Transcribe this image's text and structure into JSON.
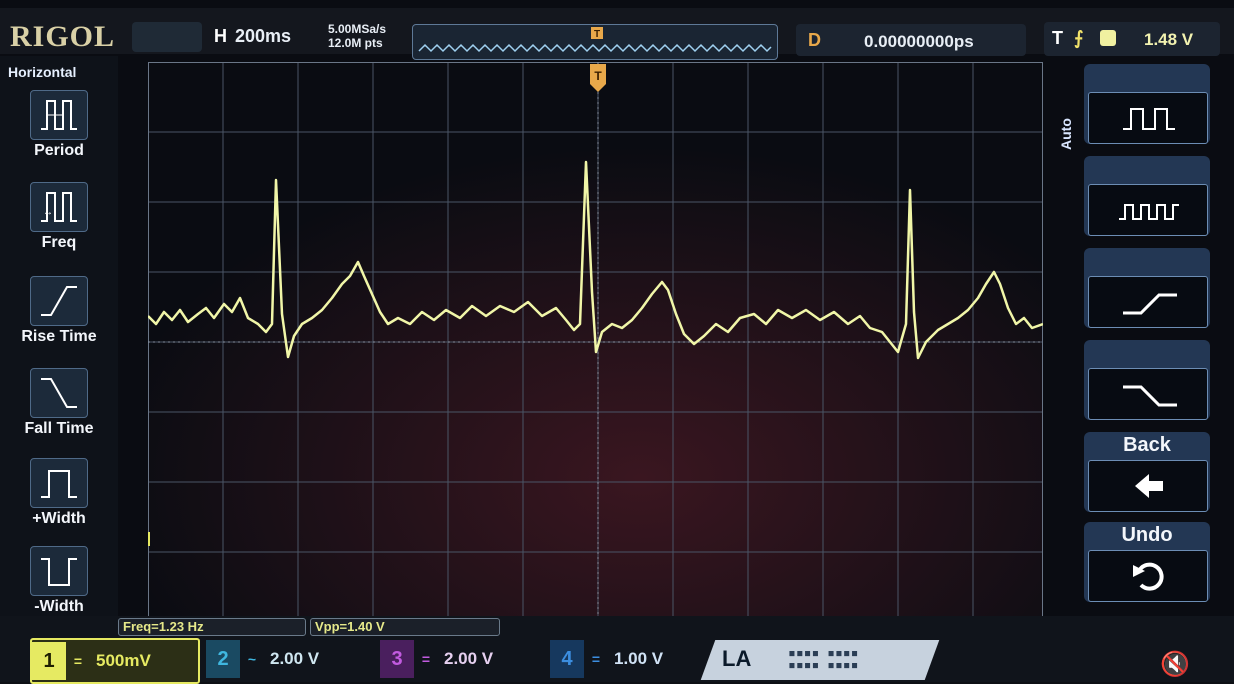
{
  "brand": {
    "logo": "RIGOL"
  },
  "top": {
    "timebase_icon": "H",
    "timebase": "200ms",
    "sample_rate": "5.00MSa/s",
    "memory_depth": "12.0M pts",
    "trigger_pos_marker": "T",
    "delay_label": "D",
    "delay_value": "0.00000000ps",
    "trigger_label": "T",
    "trigger_slope_icon": "rising-edge-icon",
    "trigger_level": "1.48 V"
  },
  "left_menu": {
    "title": "Horizontal",
    "items": [
      {
        "label": "Period",
        "icon": "period-icon"
      },
      {
        "label": "Freq",
        "icon": "freq-icon"
      },
      {
        "label": "Rise Time",
        "icon": "rise-time-icon"
      },
      {
        "label": "Fall Time",
        "icon": "fall-time-icon"
      },
      {
        "label": "+Width",
        "icon": "positive-width-icon"
      },
      {
        "label": "-Width",
        "icon": "negative-width-icon"
      }
    ]
  },
  "right_menu": {
    "mode": "Auto",
    "buttons": [
      {
        "title": "",
        "icon": "square-wave-icon"
      },
      {
        "title": "",
        "icon": "fast-square-wave-icon"
      },
      {
        "title": "",
        "icon": "rising-ramp-icon"
      },
      {
        "title": "",
        "icon": "falling-ramp-icon"
      },
      {
        "title": "Back",
        "icon": "back-arrow-icon"
      },
      {
        "title": "Undo",
        "icon": "undo-icon"
      }
    ]
  },
  "measurements": {
    "freq": "Freq=1.23 Hz",
    "vpp": "Vpp=1.40 V"
  },
  "channels": [
    {
      "num": "1",
      "coupling": "=",
      "scale": "500mV",
      "color": "#e6ea62"
    },
    {
      "num": "2",
      "coupling": "~",
      "scale": "2.00 V",
      "color": "#3fb7e0"
    },
    {
      "num": "3",
      "coupling": "=",
      "scale": "2.00 V",
      "color": "#c25be0"
    },
    {
      "num": "4",
      "coupling": "=",
      "scale": "1.00 V",
      "color": "#3c8ee0"
    }
  ],
  "logic": {
    "label": "LA"
  },
  "colors": {
    "trace": "#f1f6a8",
    "grid": "#4a5566",
    "trigger_marker": "#e8a84a"
  }
}
